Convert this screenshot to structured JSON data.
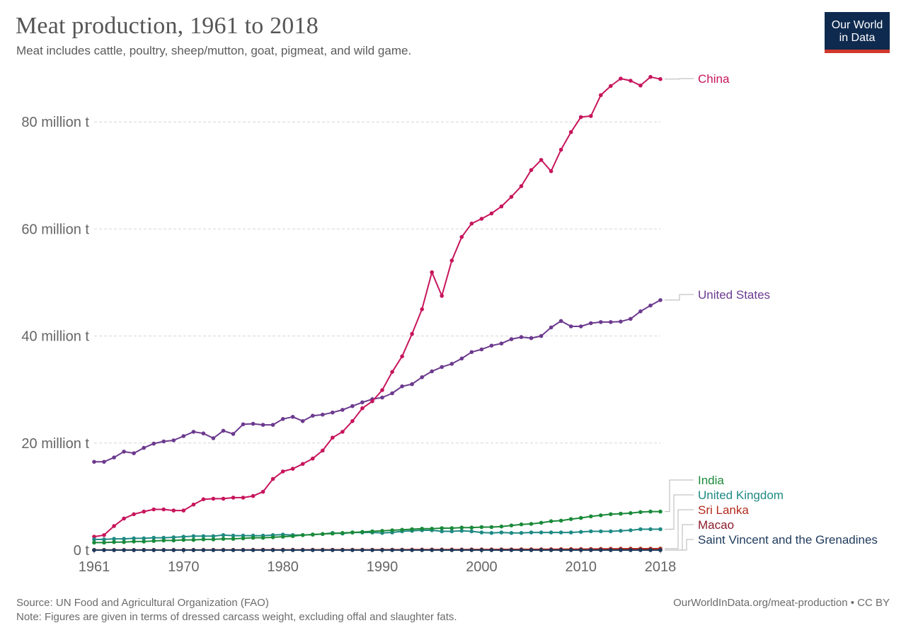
{
  "header": {
    "title": "Meat production, 1961 to 2018",
    "subtitle": "Meat includes cattle, poultry, sheep/mutton, goat, pigmeat, and wild game.",
    "logo_line1": "Our World",
    "logo_line2": "in Data"
  },
  "footer": {
    "source": "Source: UN Food and Agricultural Organization (FAO)",
    "note": "Note: Figures are given in terms of dressed carcass weight, excluding offal and slaughter fats.",
    "url": "OurWorldInData.org/meat-production • CC BY"
  },
  "colors": {
    "China": "#c7155c",
    "United States": "#6c3a8e",
    "India": "#1a8a3a",
    "United Kingdom": "#1f8a84",
    "Sri Lanka": "#b12a1d",
    "Macao": "#8b1a2a",
    "Saint Vincent and the Grenadines": "#1e3a5c"
  },
  "chart_data": {
    "type": "line",
    "title": "Meat production, 1961 to 2018",
    "y_unit": "million tonnes",
    "xlim": [
      1961,
      2018
    ],
    "ylim": [
      0,
      88
    ],
    "x_ticks": [
      1961,
      1970,
      1980,
      1990,
      2000,
      2010,
      2018
    ],
    "y_ticks": [
      0,
      20,
      40,
      60,
      80
    ],
    "y_tick_labels": [
      "0 t",
      "20 million t",
      "40 million t",
      "60 million t",
      "80 million t"
    ],
    "grid": "horizontal dashed",
    "legend": "right, labels at line ends",
    "x": [
      1961,
      1962,
      1963,
      1964,
      1965,
      1966,
      1967,
      1968,
      1969,
      1970,
      1971,
      1972,
      1973,
      1974,
      1975,
      1976,
      1977,
      1978,
      1979,
      1980,
      1981,
      1982,
      1983,
      1984,
      1985,
      1986,
      1987,
      1988,
      1989,
      1990,
      1991,
      1992,
      1993,
      1994,
      1995,
      1996,
      1997,
      1998,
      1999,
      2000,
      2001,
      2002,
      2003,
      2004,
      2005,
      2006,
      2007,
      2008,
      2009,
      2010,
      2011,
      2012,
      2013,
      2014,
      2015,
      2016,
      2017,
      2018
    ],
    "series": [
      {
        "name": "China",
        "values": [
          2.5,
          2.8,
          4.5,
          5.9,
          6.7,
          7.2,
          7.6,
          7.6,
          7.4,
          7.4,
          8.5,
          9.5,
          9.6,
          9.6,
          9.8,
          9.8,
          10.1,
          10.9,
          13.3,
          14.7,
          15.2,
          16.1,
          17.1,
          18.6,
          21.0,
          22.1,
          24.1,
          26.5,
          27.8,
          29.9,
          33.3,
          36.2,
          40.4,
          45.0,
          51.9,
          47.5,
          54.1,
          58.5,
          61.0,
          61.9,
          62.9,
          64.2,
          66.0,
          68.0,
          71.0,
          72.9,
          70.8,
          74.8,
          78.1,
          80.9,
          81.1,
          85.0,
          86.7,
          88.1,
          87.7,
          86.8,
          88.4,
          88.0
        ]
      },
      {
        "name": "United States",
        "values": [
          16.5,
          16.5,
          17.3,
          18.4,
          18.1,
          19.1,
          19.9,
          20.3,
          20.5,
          21.3,
          22.1,
          21.8,
          20.9,
          22.3,
          21.7,
          23.5,
          23.6,
          23.4,
          23.4,
          24.5,
          24.9,
          24.1,
          25.1,
          25.3,
          25.7,
          26.2,
          26.9,
          27.6,
          28.2,
          28.5,
          29.3,
          30.6,
          31.0,
          32.3,
          33.4,
          34.2,
          34.8,
          35.8,
          37.0,
          37.5,
          38.2,
          38.6,
          39.4,
          39.8,
          39.6,
          40.0,
          41.6,
          42.8,
          41.8,
          41.8,
          42.4,
          42.6,
          42.6,
          42.7,
          43.2,
          44.6,
          45.7,
          46.7
        ]
      },
      {
        "name": "India",
        "values": [
          1.4,
          1.4,
          1.5,
          1.5,
          1.6,
          1.6,
          1.7,
          1.8,
          1.8,
          1.9,
          1.9,
          2.0,
          2.0,
          2.1,
          2.1,
          2.2,
          2.3,
          2.3,
          2.4,
          2.5,
          2.6,
          2.8,
          2.9,
          3.0,
          3.1,
          3.2,
          3.3,
          3.4,
          3.5,
          3.6,
          3.7,
          3.8,
          3.9,
          4.0,
          4.0,
          4.1,
          4.1,
          4.2,
          4.2,
          4.3,
          4.3,
          4.4,
          4.6,
          4.8,
          4.9,
          5.1,
          5.4,
          5.5,
          5.8,
          6.0,
          6.3,
          6.5,
          6.7,
          6.8,
          6.9,
          7.1,
          7.2,
          7.2
        ]
      },
      {
        "name": "United Kingdom",
        "values": [
          2.0,
          2.0,
          2.1,
          2.1,
          2.2,
          2.2,
          2.3,
          2.3,
          2.4,
          2.5,
          2.6,
          2.6,
          2.6,
          2.8,
          2.7,
          2.7,
          2.7,
          2.7,
          2.8,
          2.9,
          2.8,
          2.8,
          2.9,
          3.0,
          3.2,
          3.1,
          3.3,
          3.3,
          3.3,
          3.2,
          3.3,
          3.5,
          3.6,
          3.7,
          3.7,
          3.5,
          3.5,
          3.6,
          3.5,
          3.3,
          3.2,
          3.3,
          3.2,
          3.2,
          3.3,
          3.3,
          3.3,
          3.3,
          3.3,
          3.4,
          3.5,
          3.5,
          3.5,
          3.6,
          3.7,
          3.9,
          3.9,
          3.9
        ]
      },
      {
        "name": "Sri Lanka",
        "values": [
          0.03,
          0.03,
          0.03,
          0.03,
          0.03,
          0.04,
          0.04,
          0.04,
          0.04,
          0.04,
          0.04,
          0.04,
          0.04,
          0.04,
          0.04,
          0.04,
          0.05,
          0.05,
          0.05,
          0.05,
          0.05,
          0.05,
          0.06,
          0.06,
          0.06,
          0.06,
          0.07,
          0.07,
          0.07,
          0.08,
          0.08,
          0.08,
          0.09,
          0.09,
          0.1,
          0.1,
          0.11,
          0.11,
          0.12,
          0.12,
          0.12,
          0.13,
          0.13,
          0.14,
          0.14,
          0.15,
          0.16,
          0.17,
          0.18,
          0.19,
          0.2,
          0.22,
          0.24,
          0.25,
          0.26,
          0.27,
          0.27,
          0.28
        ]
      },
      {
        "name": "Macao",
        "values": [
          0.005,
          0.005,
          0.005,
          0.005,
          0.005,
          0.005,
          0.006,
          0.006,
          0.006,
          0.006,
          0.006,
          0.006,
          0.007,
          0.007,
          0.007,
          0.007,
          0.007,
          0.008,
          0.008,
          0.008,
          0.008,
          0.008,
          0.009,
          0.009,
          0.009,
          0.009,
          0.009,
          0.01,
          0.01,
          0.01,
          0.01,
          0.01,
          0.01,
          0.01,
          0.01,
          0.01,
          0.01,
          0.01,
          0.01,
          0.01,
          0.01,
          0.01,
          0.01,
          0.01,
          0.01,
          0.01,
          0.01,
          0.01,
          0.01,
          0.01,
          0.01,
          0.01,
          0.01,
          0.01,
          0.01,
          0.01,
          0.01,
          0.01
        ]
      },
      {
        "name": "Saint Vincent and the Grenadines",
        "values": [
          0.001,
          0.001,
          0.001,
          0.001,
          0.001,
          0.001,
          0.001,
          0.001,
          0.001,
          0.001,
          0.001,
          0.001,
          0.001,
          0.001,
          0.001,
          0.001,
          0.001,
          0.001,
          0.001,
          0.001,
          0.001,
          0.001,
          0.001,
          0.001,
          0.001,
          0.001,
          0.001,
          0.001,
          0.001,
          0.001,
          0.001,
          0.001,
          0.001,
          0.001,
          0.001,
          0.001,
          0.001,
          0.001,
          0.001,
          0.001,
          0.001,
          0.001,
          0.001,
          0.001,
          0.001,
          0.001,
          0.001,
          0.001,
          0.001,
          0.001,
          0.001,
          0.001,
          0.001,
          0.001,
          0.001,
          0.001,
          0.001,
          0.001
        ]
      }
    ]
  }
}
